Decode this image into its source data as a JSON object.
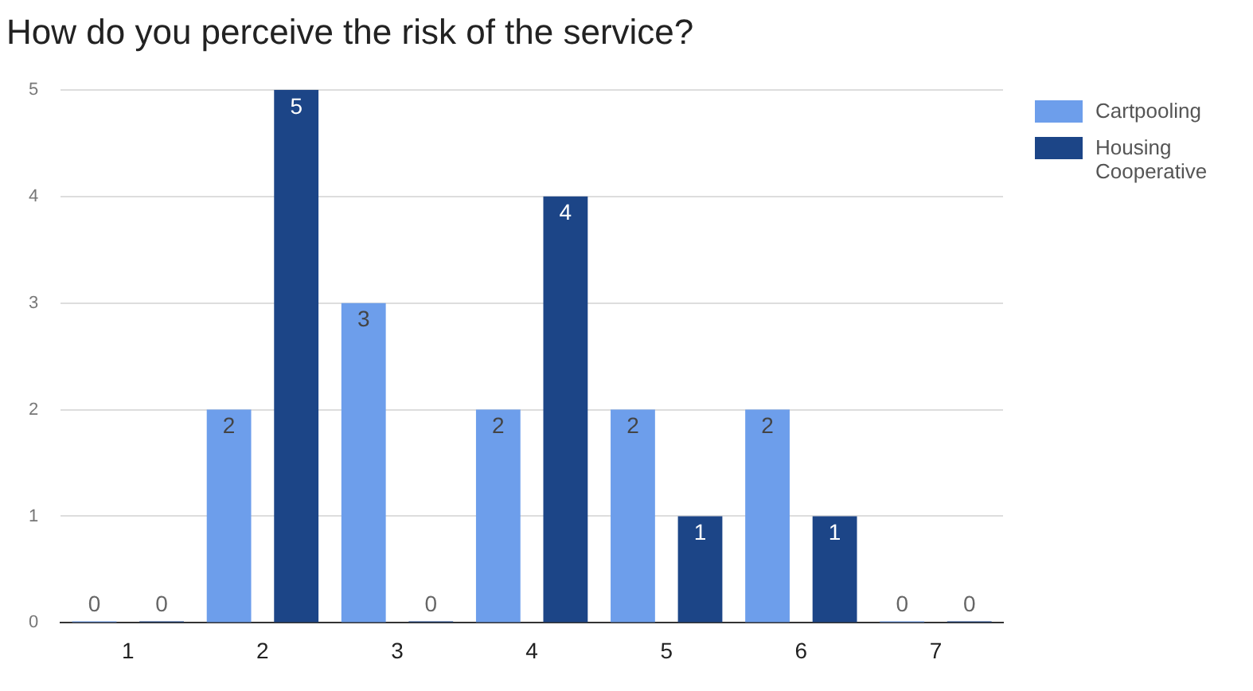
{
  "chart_data": {
    "type": "bar",
    "title": "How do you perceive the risk of the service?",
    "categories": [
      "1",
      "2",
      "3",
      "4",
      "5",
      "6",
      "7"
    ],
    "series": [
      {
        "name": "Cartpooling",
        "color": "#6d9eeb",
        "values": [
          0,
          2,
          3,
          2,
          2,
          2,
          0
        ]
      },
      {
        "name": "Housing Cooperative",
        "color": "#1c4587",
        "values": [
          0,
          5,
          0,
          4,
          1,
          1,
          0
        ]
      }
    ],
    "ylim": [
      0,
      5
    ],
    "yticks": [
      0,
      1,
      2,
      3,
      4,
      5
    ],
    "grid": "y",
    "legend": "right",
    "data_labels": true
  }
}
